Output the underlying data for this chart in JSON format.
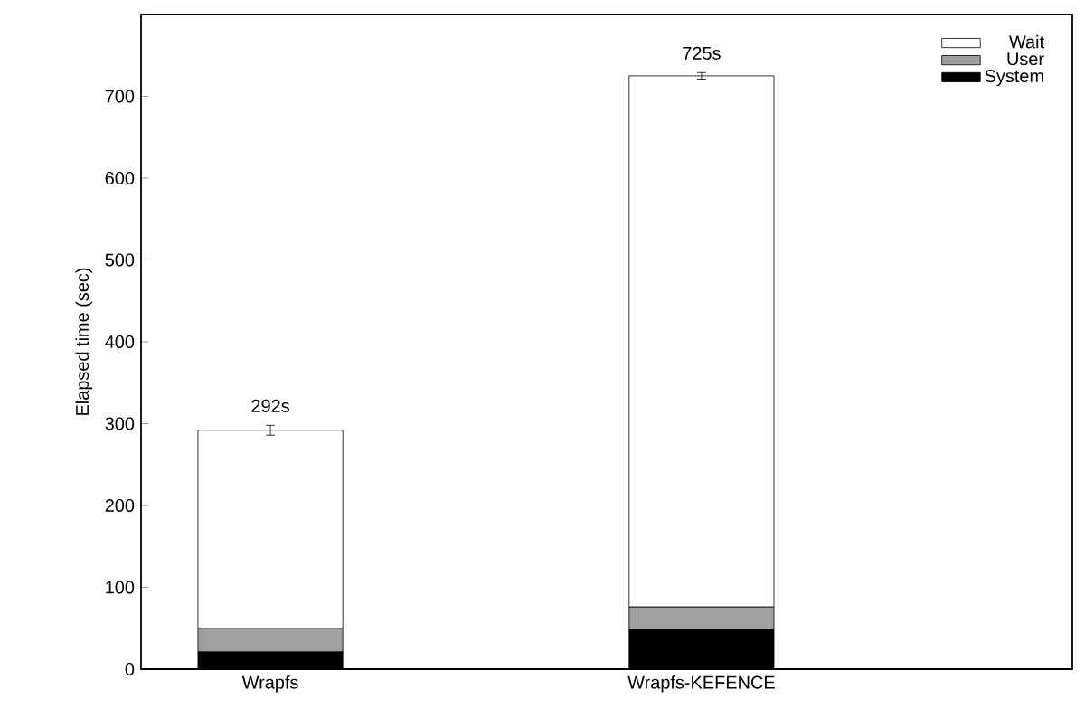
{
  "chart_data": {
    "type": "bar",
    "stacked": true,
    "ylabel": "Elapsed time (sec)",
    "categories": [
      "Wrapfs",
      "Wrapfs-KEFENCE"
    ],
    "series": [
      {
        "name": "System",
        "color": "#000000",
        "values": [
          21,
          48
        ]
      },
      {
        "name": "User",
        "color": "#a0a0a0",
        "values": [
          29,
          28
        ]
      },
      {
        "name": "Wait",
        "color": "#ffffff",
        "values": [
          242,
          649
        ],
        "errors": [
          6,
          4
        ]
      }
    ],
    "totals": [
      "292s",
      "725s"
    ],
    "ylim": [
      0,
      800
    ],
    "yticks": [
      0,
      100,
      200,
      300,
      400,
      500,
      600,
      700
    ],
    "legend": "top right"
  }
}
